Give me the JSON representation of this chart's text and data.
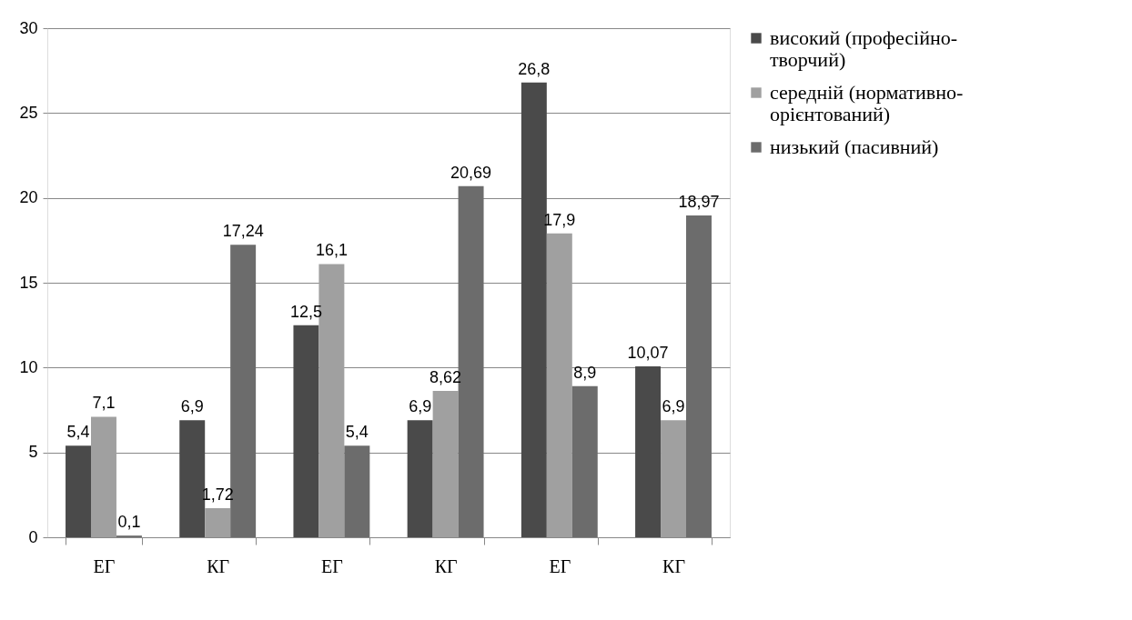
{
  "chart_data": {
    "type": "bar",
    "categories": [
      "ЕГ",
      "КГ",
      "ЕГ",
      "КГ",
      "ЕГ",
      "КГ"
    ],
    "series": [
      {
        "name": "високий (професійно-творчий)",
        "color": "#4a4a4a",
        "values": [
          5.4,
          6.9,
          12.5,
          6.9,
          26.8,
          10.07
        ],
        "value_labels": [
          "5,4",
          "6,9",
          "12,5",
          "6,9",
          "26,8",
          "10,07"
        ]
      },
      {
        "name": "середній (нормативно-орієнтований)",
        "color": "#a0a0a0",
        "values": [
          7.1,
          1.72,
          16.1,
          8.62,
          17.9,
          6.9
        ],
        "value_labels": [
          "7,1",
          "1,72",
          "16,1",
          "8,62",
          "17,9",
          "6,9"
        ]
      },
      {
        "name": "низький (пасивний)",
        "color": "#6c6c6c",
        "values": [
          0.1,
          17.24,
          5.4,
          20.69,
          8.9,
          18.97
        ],
        "value_labels": [
          "0,1",
          "17,24",
          "5,4",
          "20,69",
          "8,9",
          "18,97"
        ]
      }
    ],
    "ylim": [
      0,
      30
    ],
    "yticks": [
      0,
      5,
      10,
      15,
      20,
      25,
      30
    ],
    "grid": "y",
    "legend": "right"
  }
}
